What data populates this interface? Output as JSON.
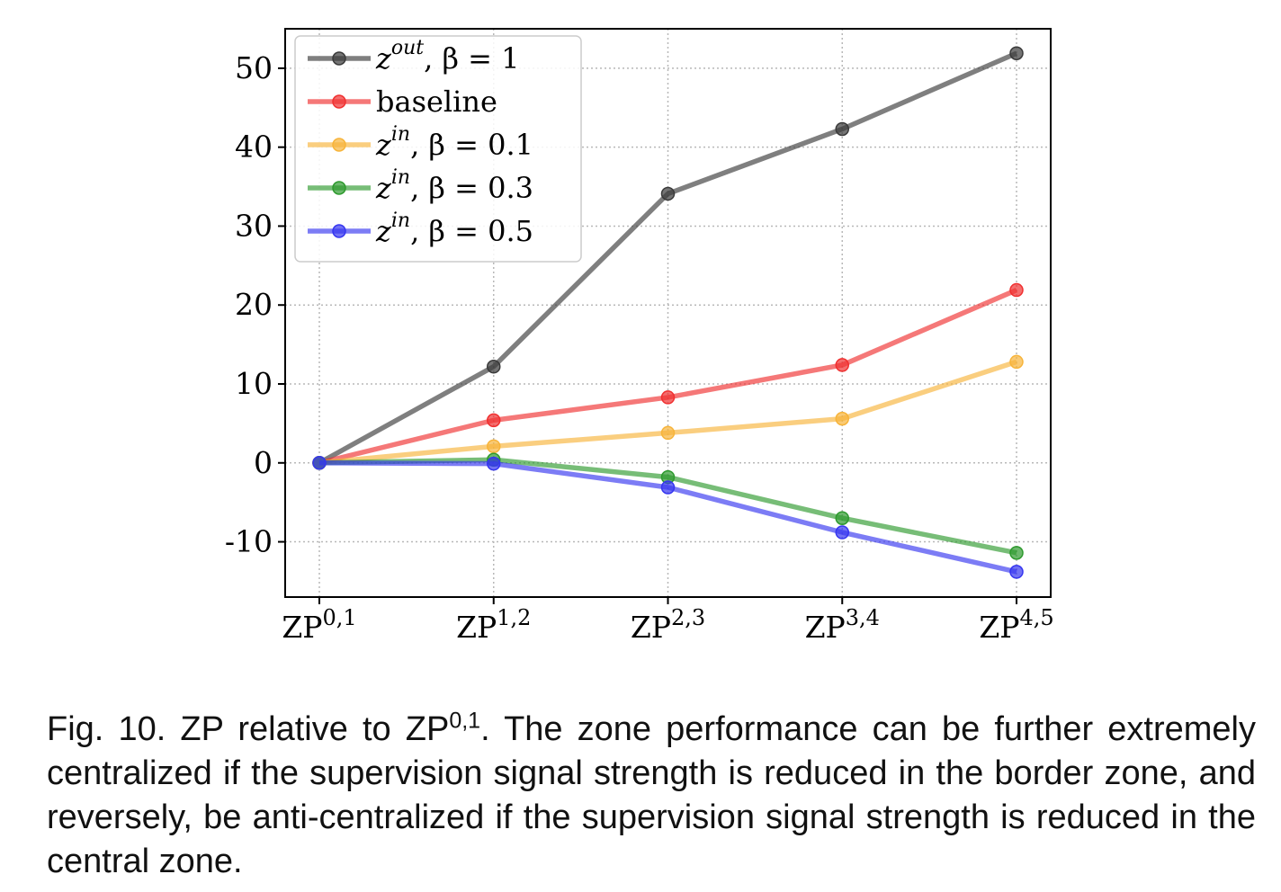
{
  "chart_data": {
    "type": "line",
    "categories": [
      {
        "base": "ZP",
        "sup": "0,1"
      },
      {
        "base": "ZP",
        "sup": "1,2"
      },
      {
        "base": "ZP",
        "sup": "2,3"
      },
      {
        "base": "ZP",
        "sup": "3,4"
      },
      {
        "base": "ZP",
        "sup": "4,5"
      }
    ],
    "ylim": [
      -17,
      55
    ],
    "yticks": [
      -10,
      0,
      10,
      20,
      30,
      40,
      50
    ],
    "ytick_labels": [
      "-10",
      "0",
      "10",
      "20",
      "30",
      "40",
      "50"
    ],
    "grid": true,
    "legend_position": "top-left",
    "series": [
      {
        "name": "z^{out}, β = 1",
        "legend": {
          "var": "z",
          "sup": "out",
          "rest": ", β = 1"
        },
        "color": "#3a3a3a",
        "values": [
          0,
          12.2,
          34.1,
          42.3,
          51.9
        ]
      },
      {
        "name": "baseline",
        "legend": {
          "var": "",
          "sup": "",
          "rest": "baseline"
        },
        "color": "#f03030",
        "values": [
          0,
          5.4,
          8.3,
          12.4,
          21.9
        ]
      },
      {
        "name": "z^{in}, β = 0.1",
        "legend": {
          "var": "z",
          "sup": "in",
          "rest": ", β = 0.1"
        },
        "color": "#f7b43a",
        "values": [
          0,
          2.1,
          3.8,
          5.6,
          12.8
        ]
      },
      {
        "name": "z^{in}, β = 0.3",
        "legend": {
          "var": "z",
          "sup": "in",
          "rest": ", β = 0.3"
        },
        "color": "#2e9a2e",
        "values": [
          0,
          0.4,
          -1.8,
          -7.0,
          -11.4
        ]
      },
      {
        "name": "z^{in}, β = 0.5",
        "legend": {
          "var": "z",
          "sup": "in",
          "rest": ", β = 0.5"
        },
        "color": "#3636f0",
        "values": [
          0,
          -0.1,
          -3.1,
          -8.8,
          -13.8
        ]
      }
    ]
  },
  "caption": {
    "part1": "Fig. 10. ZP relative to ZP",
    "sup": "0,1",
    "part2": ". The zone performance can be further extremely centralized if the supervision signal strength is reduced in the border zone, and reversely, be anti-centralized if the supervision signal strength is reduced in the central zone."
  }
}
